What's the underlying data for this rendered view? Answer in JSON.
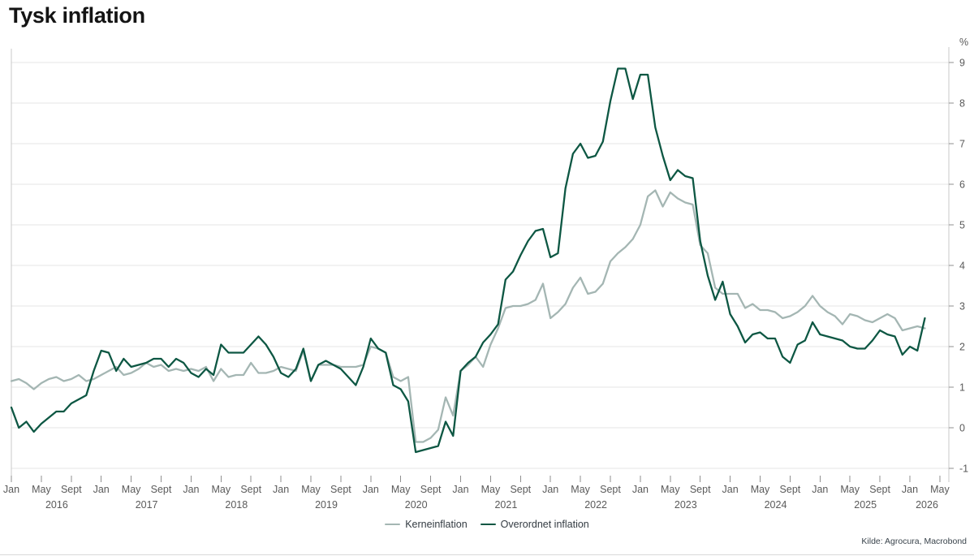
{
  "title": "Tysk inflation",
  "source": "Kilde: Agrocura, Macrobond",
  "y_axis": {
    "unit": "%",
    "ticks": [
      9,
      8,
      7,
      6,
      5,
      4,
      3,
      2,
      1,
      0,
      -1
    ],
    "min": -1,
    "max": 9
  },
  "x_axis": {
    "ticks": [
      {
        "year": "2016",
        "months": [
          "Jan",
          "May",
          "Sept"
        ]
      },
      {
        "year": "2017",
        "months": [
          "Jan",
          "May",
          "Sept"
        ]
      },
      {
        "year": "2018",
        "months": [
          "Jan",
          "May",
          "Sept"
        ]
      },
      {
        "year": "2019",
        "months": [
          "Jan",
          "May",
          "Sept"
        ]
      },
      {
        "year": "2020",
        "months": [
          "Jan",
          "May",
          "Sept"
        ]
      },
      {
        "year": "2021",
        "months": [
          "Jan",
          "May",
          "Sept"
        ]
      },
      {
        "year": "2022",
        "months": [
          "Jan",
          "May",
          "Sept"
        ]
      },
      {
        "year": "2023",
        "months": [
          "Jan",
          "May",
          "Sept"
        ]
      },
      {
        "year": "2024",
        "months": [
          "Jan",
          "May",
          "Sept"
        ]
      },
      {
        "year": "2025",
        "months": [
          "Jan",
          "May",
          "Sept"
        ]
      },
      {
        "year": "2026",
        "months": [
          "Jan",
          "May"
        ]
      }
    ]
  },
  "legend": [
    {
      "label": "Kerneinflation",
      "color": "#a4b6b3"
    },
    {
      "label": "Overordnet inflation",
      "color": "#0d5743"
    }
  ],
  "chart_data": {
    "type": "line",
    "title": "Tysk inflation",
    "x_start": "2016-01",
    "x_end": "2026-03",
    "x_axis_end": "2026-05",
    "frequency": "monthly",
    "ylim": [
      -1,
      9
    ],
    "y_unit": "%",
    "grid": "horizontal",
    "legend_position": "bottom-center",
    "series": [
      {
        "name": "Kerneinflation",
        "color": "#a4b6b3",
        "values": [
          1.15,
          1.2,
          1.1,
          0.95,
          1.1,
          1.2,
          1.25,
          1.15,
          1.2,
          1.3,
          1.15,
          1.2,
          1.3,
          1.4,
          1.5,
          1.3,
          1.35,
          1.45,
          1.6,
          1.5,
          1.55,
          1.4,
          1.45,
          1.4,
          1.45,
          1.4,
          1.5,
          1.15,
          1.45,
          1.25,
          1.3,
          1.3,
          1.6,
          1.35,
          1.35,
          1.4,
          1.5,
          1.45,
          1.4,
          1.9,
          1.15,
          1.55,
          1.55,
          1.55,
          1.5,
          1.5,
          1.5,
          1.55,
          2.0,
          1.95,
          1.85,
          1.25,
          1.15,
          1.25,
          -0.35,
          -0.35,
          -0.25,
          -0.05,
          0.75,
          0.3,
          1.4,
          1.55,
          1.75,
          1.5,
          2.05,
          2.45,
          2.95,
          3.0,
          3.0,
          3.05,
          3.15,
          3.55,
          2.7,
          2.85,
          3.05,
          3.45,
          3.7,
          3.3,
          3.35,
          3.55,
          4.1,
          4.3,
          4.45,
          4.65,
          5.0,
          5.7,
          5.85,
          5.45,
          5.8,
          5.65,
          5.55,
          5.5,
          4.5,
          4.3,
          3.45,
          3.3,
          3.3,
          3.3,
          2.95,
          3.05,
          2.9,
          2.9,
          2.85,
          2.7,
          2.75,
          2.85,
          3.0,
          3.25,
          3.0,
          2.85,
          2.75,
          2.55,
          2.8,
          2.75,
          2.65,
          2.6,
          2.7,
          2.8,
          2.7,
          2.4,
          2.45,
          2.5,
          2.45
        ]
      },
      {
        "name": "Overordnet inflation",
        "color": "#0d5743",
        "values": [
          0.5,
          0.0,
          0.15,
          -0.1,
          0.1,
          0.25,
          0.4,
          0.4,
          0.6,
          0.7,
          0.8,
          1.4,
          1.9,
          1.85,
          1.4,
          1.7,
          1.5,
          1.55,
          1.6,
          1.7,
          1.7,
          1.5,
          1.7,
          1.6,
          1.35,
          1.25,
          1.45,
          1.3,
          2.05,
          1.85,
          1.85,
          1.85,
          2.05,
          2.25,
          2.05,
          1.75,
          1.35,
          1.25,
          1.45,
          1.95,
          1.15,
          1.55,
          1.65,
          1.55,
          1.45,
          1.25,
          1.05,
          1.5,
          2.2,
          1.95,
          1.85,
          1.05,
          0.95,
          0.65,
          -0.6,
          -0.55,
          -0.5,
          -0.45,
          0.15,
          -0.2,
          1.4,
          1.6,
          1.75,
          2.1,
          2.3,
          2.55,
          3.65,
          3.85,
          4.25,
          4.6,
          4.85,
          4.9,
          4.2,
          4.3,
          5.9,
          6.75,
          7.0,
          6.65,
          6.7,
          7.05,
          8.05,
          8.85,
          8.85,
          8.1,
          8.7,
          8.7,
          7.4,
          6.7,
          6.1,
          6.35,
          6.2,
          6.15,
          4.6,
          3.75,
          3.15,
          3.6,
          2.8,
          2.5,
          2.1,
          2.3,
          2.35,
          2.2,
          2.2,
          1.75,
          1.6,
          2.05,
          2.15,
          2.6,
          2.3,
          2.25,
          2.2,
          2.15,
          2.0,
          1.95,
          1.95,
          2.15,
          2.4,
          2.3,
          2.25,
          1.8,
          2.0,
          1.9,
          2.7
        ]
      }
    ]
  }
}
